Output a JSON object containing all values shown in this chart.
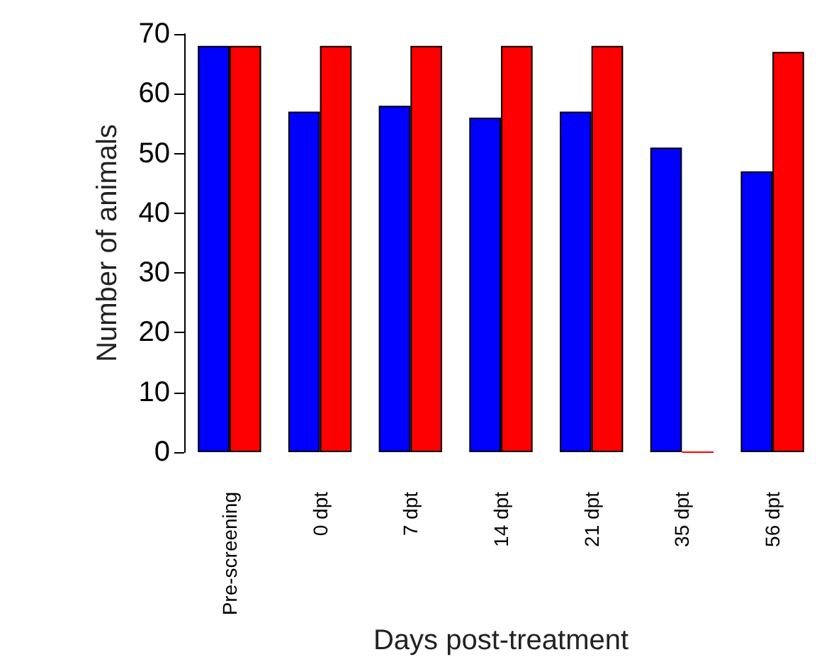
{
  "chart_data": {
    "type": "bar",
    "xlabel": "Days post-treatment",
    "ylabel": "Number of animals",
    "categories": [
      "Pre-screening",
      "0 dpt",
      "7 dpt",
      "14 dpt",
      "21 dpt",
      "35 dpt",
      "56 dpt"
    ],
    "series": [
      {
        "color": "#0000ff",
        "values": [
          68,
          57,
          58,
          56,
          57,
          51,
          47
        ]
      },
      {
        "color": "#ff0000",
        "values": [
          68,
          68,
          68,
          68,
          68,
          0,
          67
        ]
      }
    ],
    "ylim": [
      0,
      70
    ],
    "yticks": [
      0,
      10,
      20,
      30,
      40,
      50,
      60,
      70
    ],
    "grid": false
  }
}
